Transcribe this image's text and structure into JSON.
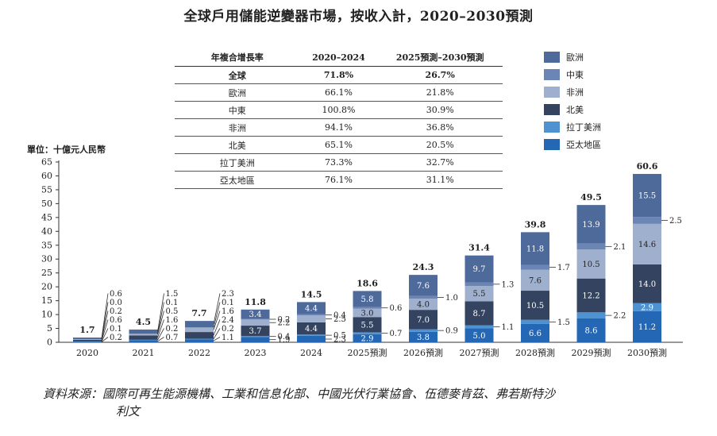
{
  "title": "全球戶用儲能逆變器市場，按收入計，2020–2030預測",
  "unit_label": "單位：十億元人民幣",
  "table": {
    "headers": [
      "年複合增長率",
      "2020–2024",
      "2025預測–2030預測"
    ],
    "rows": [
      [
        "全球",
        "71.8%",
        "26.7%"
      ],
      [
        "歐洲",
        "66.1%",
        "21.8%"
      ],
      [
        "中東",
        "100.8%",
        "30.9%"
      ],
      [
        "非洲",
        "94.1%",
        "36.8%"
      ],
      [
        "北美",
        "65.1%",
        "20.5%"
      ],
      [
        "拉丁美洲",
        "73.3%",
        "32.7%"
      ],
      [
        "亞太地區",
        "76.1%",
        "31.1%"
      ]
    ]
  },
  "legend": [
    {
      "label": "歐洲",
      "color": "#4e6a9b"
    },
    {
      "label": "中東",
      "color": "#6b86b5"
    },
    {
      "label": "非洲",
      "color": "#9fb0cf"
    },
    {
      "label": "北美",
      "color": "#34435f"
    },
    {
      "label": "拉丁美洲",
      "color": "#4f92d2"
    },
    {
      "label": "亞太地區",
      "color": "#2367b5"
    }
  ],
  "source_line1": "資料來源：國際可再生能源機構、工業和信息化部、中國光伏行業協會、伍德麥肯茲、弗若斯特沙",
  "source_line2": "利文",
  "chart_data": {
    "type": "bar",
    "stacked": true,
    "categories": [
      "2020",
      "2021",
      "2022",
      "2023",
      "2024",
      "2025預測",
      "2026預測",
      "2027預測",
      "2028預測",
      "2029預測",
      "2030預測"
    ],
    "series": [
      {
        "name": "亞太地區",
        "color": "#2367b5",
        "values": [
          0.2,
          0.7,
          1.1,
          1.9,
          2.3,
          2.9,
          3.8,
          5.0,
          6.6,
          8.6,
          11.2
        ]
      },
      {
        "name": "拉丁美洲",
        "color": "#4f92d2",
        "values": [
          0.1,
          0.2,
          0.2,
          0.4,
          0.5,
          0.7,
          0.9,
          1.1,
          1.5,
          2.2,
          2.9
        ]
      },
      {
        "name": "北美",
        "color": "#34435f",
        "values": [
          0.6,
          1.6,
          2.4,
          3.7,
          4.4,
          5.5,
          7.0,
          8.7,
          10.5,
          12.2,
          14.0
        ]
      },
      {
        "name": "非洲",
        "color": "#9fb0cf",
        "values": [
          0.2,
          0.5,
          1.6,
          2.2,
          2.5,
          3.0,
          4.0,
          5.5,
          7.6,
          10.5,
          14.6
        ]
      },
      {
        "name": "中東",
        "color": "#6b86b5",
        "values": [
          0.0,
          0.1,
          0.1,
          0.2,
          0.4,
          0.6,
          1.0,
          1.3,
          1.7,
          2.1,
          2.5
        ]
      },
      {
        "name": "歐洲",
        "color": "#4e6a9b",
        "values": [
          0.6,
          1.5,
          2.3,
          3.4,
          4.4,
          5.8,
          7.6,
          9.7,
          11.8,
          13.9,
          15.5
        ]
      }
    ],
    "totals": [
      "1.7",
      "4.5",
      "7.7",
      "11.8",
      "14.5",
      "18.6",
      "24.3",
      "31.4",
      "39.8",
      "49.5",
      "60.6"
    ],
    "segment_labels": [
      [
        "0.2",
        "0.1",
        "0.6",
        "0.2",
        "0.0",
        "0.6"
      ],
      [
        "0.7",
        "0.2",
        "1.6",
        "0.5",
        "0.1",
        "1.5"
      ],
      [
        "1.1",
        "0.2",
        "2.4",
        "1.6",
        "0.1",
        "2.3"
      ],
      [
        "1.9",
        "0.4",
        "3.7",
        "2.2",
        "0.2",
        "3.4"
      ],
      [
        "2.3",
        "0.5",
        "4.4",
        "2.5",
        "0.4",
        "4.4"
      ],
      [
        "2.9",
        "0.7",
        "5.5",
        "3.0",
        "0.6",
        "5.8"
      ],
      [
        "3.8",
        "0.9",
        "7.0",
        "4.0",
        "1.0",
        "7.6"
      ],
      [
        "5.0",
        "1.1",
        "8.7",
        "5.5",
        "1.3",
        "9.7"
      ],
      [
        "6.6",
        "1.5",
        "10.5",
        "7.6",
        "1.7",
        "11.8"
      ],
      [
        "8.6",
        "2.2",
        "12.2",
        "10.5",
        "2.1",
        "13.9"
      ],
      [
        "11.2",
        "2.9",
        "14.0",
        "14.6",
        "2.5",
        "15.5"
      ]
    ],
    "y_ticks": [
      "0",
      "5",
      "10",
      "15",
      "20",
      "25",
      "30",
      "35",
      "40",
      "45",
      "50",
      "55",
      "60",
      "65"
    ],
    "ylim": [
      0,
      65
    ],
    "grid": false
  }
}
